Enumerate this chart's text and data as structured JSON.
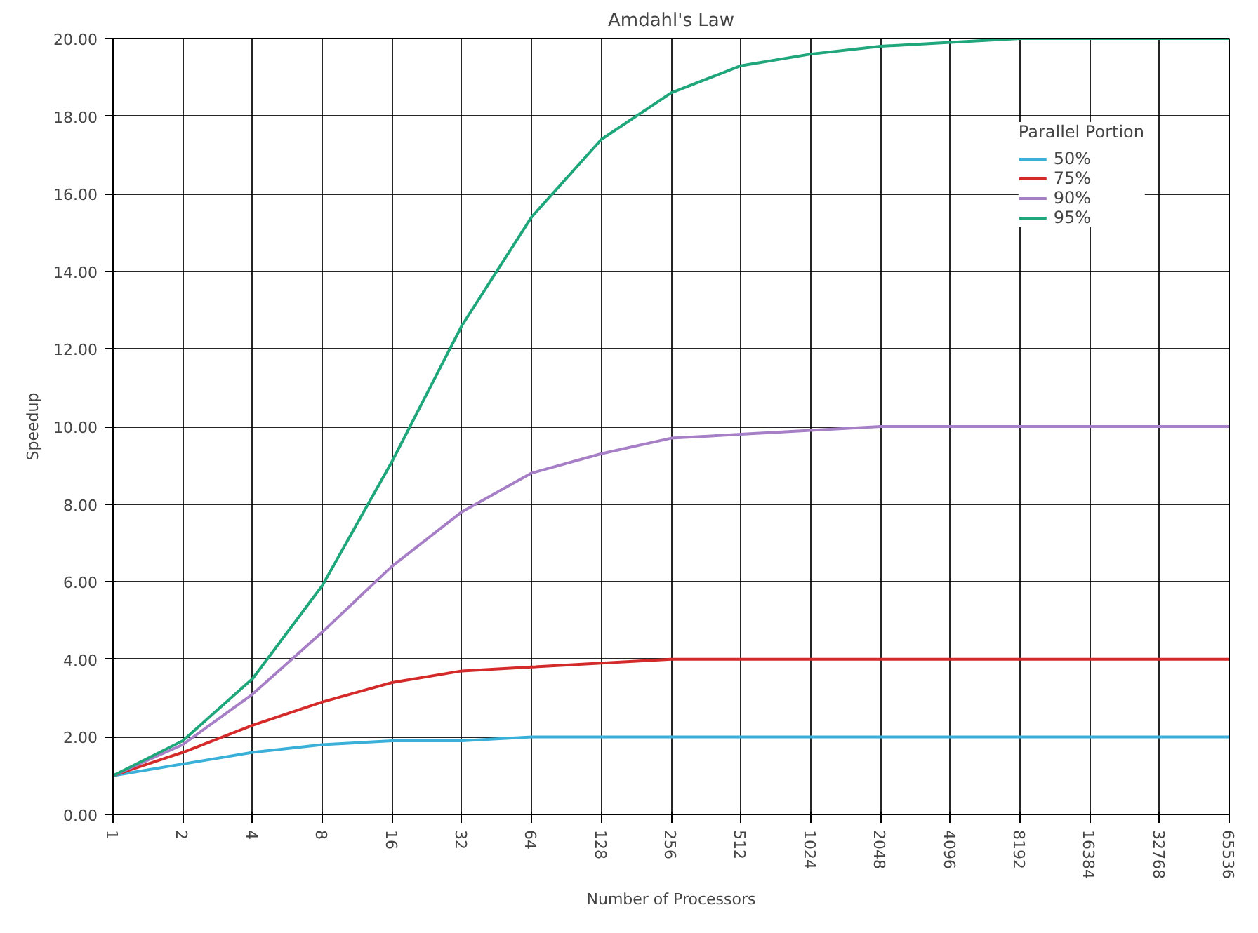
{
  "chart_data": {
    "type": "line",
    "title": "Amdahl's Law",
    "xlabel": "Number of Processors",
    "ylabel": "Speedup",
    "categories": [
      "1",
      "2",
      "4",
      "8",
      "16",
      "32",
      "64",
      "128",
      "256",
      "512",
      "1024",
      "2048",
      "4096",
      "8192",
      "16384",
      "32768",
      "65536"
    ],
    "series": [
      {
        "name": "50%",
        "color": "#3ab0d8",
        "values": [
          1.0,
          1.3,
          1.6,
          1.8,
          1.9,
          1.9,
          2.0,
          2.0,
          2.0,
          2.0,
          2.0,
          2.0,
          2.0,
          2.0,
          2.0,
          2.0,
          2.0
        ]
      },
      {
        "name": "75%",
        "color": "#d42a2a",
        "values": [
          1.0,
          1.6,
          2.3,
          2.9,
          3.4,
          3.7,
          3.8,
          3.9,
          4.0,
          4.0,
          4.0,
          4.0,
          4.0,
          4.0,
          4.0,
          4.0,
          4.0
        ]
      },
      {
        "name": "90%",
        "color": "#a67fc7",
        "values": [
          1.0,
          1.8,
          3.1,
          4.7,
          6.4,
          7.8,
          8.8,
          9.3,
          9.7,
          9.8,
          9.9,
          10.0,
          10.0,
          10.0,
          10.0,
          10.0,
          10.0
        ]
      },
      {
        "name": "95%",
        "color": "#1fa67a",
        "values": [
          1.0,
          1.9,
          3.5,
          5.9,
          9.1,
          12.6,
          15.4,
          17.4,
          18.6,
          19.3,
          19.6,
          19.8,
          19.9,
          20.0,
          20.0,
          20.0,
          20.0
        ]
      }
    ],
    "ylim": [
      0,
      20
    ],
    "yticks": [
      {
        "value": 0,
        "label": "0.00"
      },
      {
        "value": 2,
        "label": "2.00"
      },
      {
        "value": 4,
        "label": "4.00"
      },
      {
        "value": 6,
        "label": "6.00"
      },
      {
        "value": 8,
        "label": "8.00"
      },
      {
        "value": 10,
        "label": "10.00"
      },
      {
        "value": 12,
        "label": "12.00"
      },
      {
        "value": 14,
        "label": "14.00"
      },
      {
        "value": 16,
        "label": "16.00"
      },
      {
        "value": 18,
        "label": "18.00"
      },
      {
        "value": 20,
        "label": "20.00"
      }
    ],
    "legend_title": "Parallel Portion",
    "legend": "top right",
    "grid": true,
    "marker": "none",
    "line_style": "solid"
  }
}
